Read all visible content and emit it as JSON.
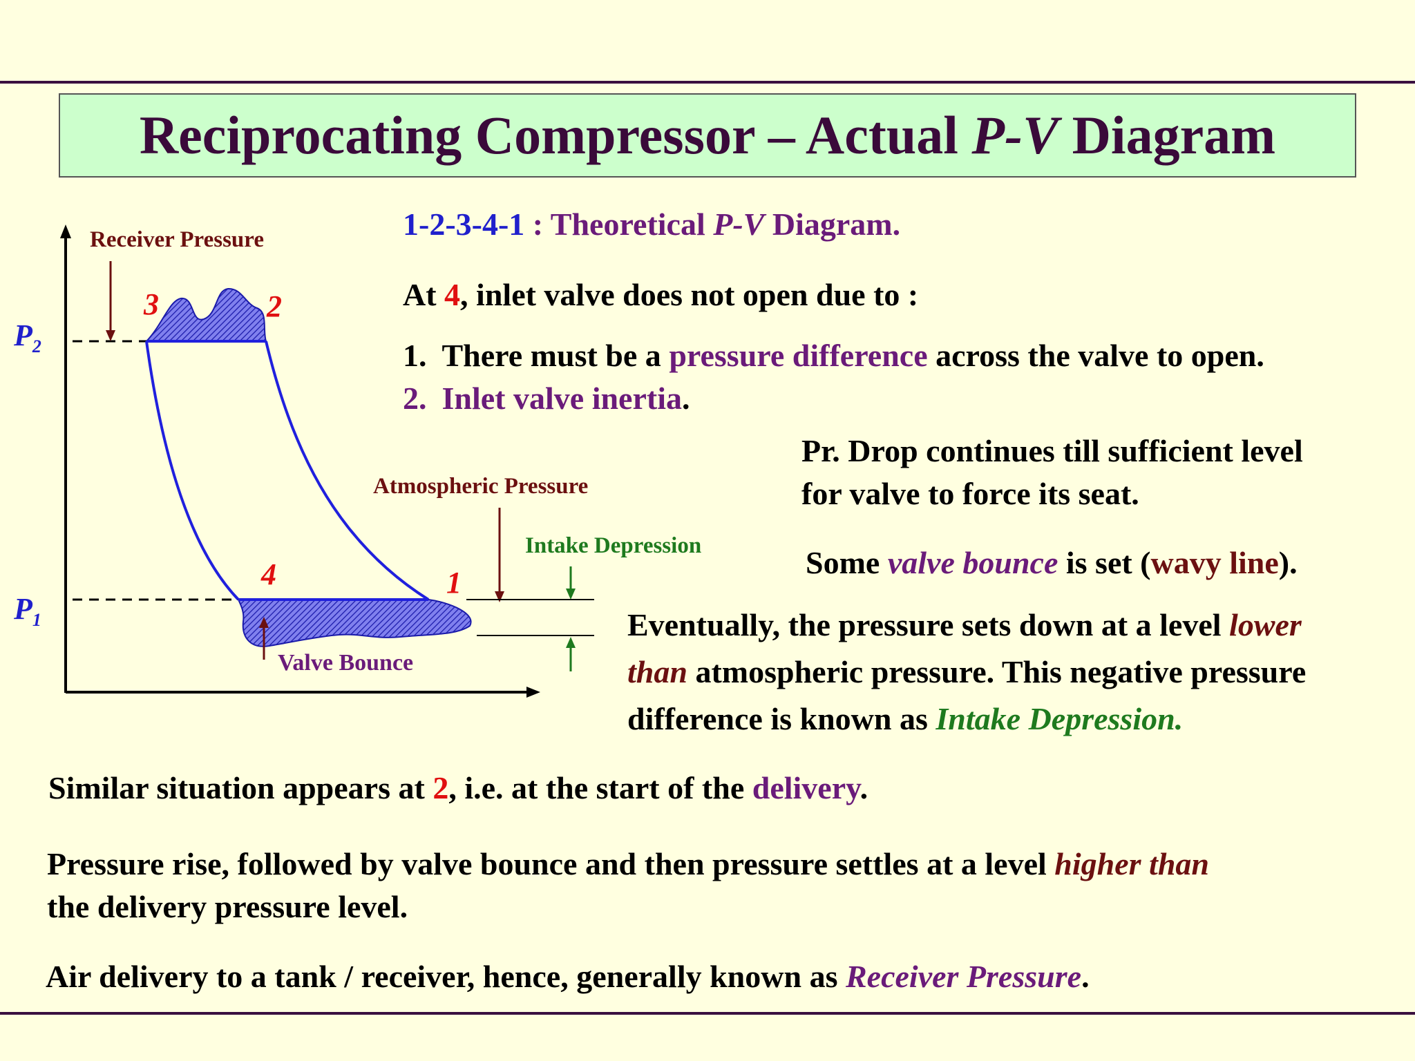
{
  "title": {
    "main": "Reciprocating Compressor – Actual ",
    "italic": "P-V",
    "tail": " Diagram"
  },
  "diagram": {
    "receiver_label": "Receiver Pressure",
    "atmospheric_label": "Atmospheric Pressure",
    "intake_label": "Intake Depression",
    "valve_bounce_label": "Valve Bounce",
    "p2_label": "P",
    "p2_sub": "2",
    "p1_label": "P",
    "p1_sub": "1",
    "pt1": "1",
    "pt2": "2",
    "pt3": "3",
    "pt4": "4",
    "colors": {
      "curve": "#2020dd",
      "hatch": "#3030cc",
      "arrow_maroon": "#6b1010",
      "arrow_green": "#1e7a1e",
      "label_point": "#e01010"
    }
  },
  "text": {
    "theory_seq": "1-2-3-4-1",
    "theory_colon": " : Theoretical ",
    "theory_pv": "P-V",
    "theory_tail": " Diagram.",
    "at_pre": "At ",
    "at_num": "4",
    "at_post": ", inlet valve does not open due to :",
    "item1_num": "1.",
    "item1_pre": "There must be a ",
    "item1_hl": "pressure difference",
    "item1_post": " across the valve to open.",
    "item2_num": "2.",
    "item2_hl": "Inlet valve inertia",
    "item2_post": ".",
    "prdrop_line1": "Pr. Drop continues till sufficient level",
    "prdrop_line2": "for valve to force its seat.",
    "bounce_pre": "Some ",
    "bounce_hl": "valve bounce",
    "bounce_mid": " is set (",
    "bounce_wavy": "wavy line",
    "bounce_post": ").",
    "ev_line1_pre": "Eventually, the pressure sets down at a level ",
    "ev_line1_hl": "lower",
    "ev_line2_hl": "than",
    "ev_line2_post": " atmospheric pressure. This negative pressure",
    "ev_line3_pre": "difference is known as ",
    "ev_line3_hl": "Intake Depression.",
    "sim_pre": "Similar situation appears at ",
    "sim_num": "2",
    "sim_mid": ", i.e. at the start of the ",
    "sim_hl": "delivery",
    "sim_post": ".",
    "rise_line1_pre": "Pressure rise, followed by valve bounce and then pressure settles at a level ",
    "rise_line1_hl": "higher than",
    "rise_line2": "the delivery pressure level.",
    "air_pre": "Air delivery to a tank / receiver, hence, generally known as ",
    "air_hl": "Receiver Pressure",
    "air_post": "."
  }
}
